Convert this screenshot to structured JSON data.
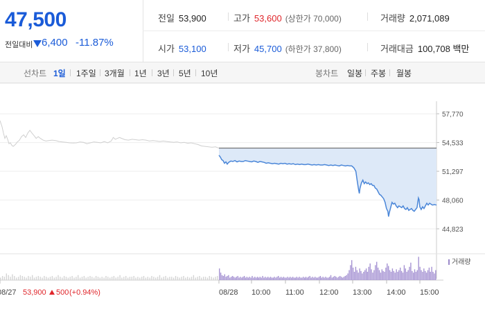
{
  "summary": {
    "price": "47,500",
    "change_label": "전일대비",
    "change_value": "6,400",
    "change_rate": "-11.87%",
    "prev_close_label": "전일",
    "prev_close": "53,900",
    "high_label": "고가",
    "high": "53,600",
    "upper_limit": "(상한가 70,000)",
    "volume_label": "거래량",
    "volume": "2,071,089",
    "open_label": "시가",
    "open": "53,100",
    "low_label": "저가",
    "low": "45,700",
    "lower_limit": "(하한가 37,800)",
    "amount_label": "거래대금",
    "amount": "100,708 백만",
    "down_color": "#1a5bd8",
    "up_color": "#e0262b"
  },
  "tabs": {
    "line_label": "선차트",
    "line_items": [
      "1일",
      "1주일",
      "3개월",
      "1년",
      "3년",
      "5년",
      "10년"
    ],
    "line_selected": 0,
    "candle_label": "봉차트",
    "candle_items": [
      "일봉",
      "주봉",
      "월봉"
    ]
  },
  "chart_data": {
    "type": "line",
    "yticks": [
      "57,770",
      "54,533",
      "51,297",
      "48,060",
      "44,823"
    ],
    "ytick_values": [
      57770,
      54533,
      51297,
      48060,
      44823
    ],
    "ylim": [
      44200,
      58400
    ],
    "reference_price": 53900,
    "xticks": [
      "08/27",
      "08/28",
      "10:00",
      "11:00",
      "12:00",
      "13:00",
      "14:00",
      "15:00"
    ],
    "prev_day": {
      "date": "08/27",
      "close": "53,900",
      "change": "500",
      "change_rate": "(+0.94%)",
      "color": "#cfcfcf",
      "points": [
        [
          0,
          57000
        ],
        [
          3,
          56300
        ],
        [
          5,
          55600
        ],
        [
          7,
          55000
        ],
        [
          9,
          55300
        ],
        [
          11,
          54900
        ],
        [
          13,
          54400
        ],
        [
          15,
          54500
        ],
        [
          17,
          54200
        ],
        [
          19,
          54100
        ],
        [
          22,
          54300
        ],
        [
          25,
          54600
        ],
        [
          28,
          54800
        ],
        [
          31,
          55200
        ],
        [
          34,
          55400
        ],
        [
          37,
          55100
        ],
        [
          40,
          55600
        ],
        [
          43,
          55900
        ],
        [
          46,
          55600
        ],
        [
          49,
          55300
        ],
        [
          52,
          55000
        ],
        [
          55,
          55200
        ],
        [
          58,
          55000
        ],
        [
          62,
          54800
        ],
        [
          66,
          54700
        ],
        [
          70,
          54750
        ],
        [
          75,
          54800
        ],
        [
          80,
          54750
        ],
        [
          85,
          54650
        ],
        [
          90,
          54600
        ],
        [
          95,
          54550
        ],
        [
          100,
          54500
        ],
        [
          105,
          54480
        ],
        [
          110,
          54500
        ],
        [
          115,
          54600
        ],
        [
          120,
          54550
        ],
        [
          125,
          54400
        ],
        [
          130,
          54500
        ],
        [
          135,
          54600
        ],
        [
          140,
          54550
        ],
        [
          145,
          54500
        ],
        [
          150,
          54650
        ],
        [
          155,
          54500
        ],
        [
          160,
          54700
        ],
        [
          163,
          55100
        ],
        [
          166,
          54900
        ],
        [
          169,
          55000
        ],
        [
          172,
          55100
        ],
        [
          175,
          55000
        ],
        [
          180,
          54850
        ],
        [
          185,
          54800
        ],
        [
          190,
          54900
        ],
        [
          195,
          54850
        ],
        [
          200,
          54800
        ],
        [
          205,
          54850
        ],
        [
          210,
          54800
        ],
        [
          215,
          54700
        ],
        [
          220,
          54750
        ],
        [
          225,
          54700
        ],
        [
          230,
          54650
        ],
        [
          235,
          54700
        ],
        [
          240,
          54650
        ],
        [
          245,
          54600
        ],
        [
          250,
          54550
        ],
        [
          255,
          54600
        ],
        [
          260,
          54500
        ],
        [
          265,
          54550
        ],
        [
          270,
          54450
        ],
        [
          275,
          54500
        ],
        [
          280,
          54400
        ],
        [
          285,
          54300
        ],
        [
          290,
          54150
        ],
        [
          295,
          54100
        ],
        [
          300,
          54050
        ],
        [
          305,
          54000
        ],
        [
          310,
          54050
        ],
        [
          315,
          53900
        ]
      ]
    },
    "today": {
      "date": "08/28",
      "color": "#4a86d8",
      "fill": "#dde9f8",
      "points": [
        [
          0,
          53100
        ],
        [
          2,
          52900
        ],
        [
          4,
          52600
        ],
        [
          6,
          52500
        ],
        [
          8,
          52200
        ],
        [
          10,
          52350
        ],
        [
          12,
          52100
        ],
        [
          14,
          52300
        ],
        [
          17,
          52450
        ],
        [
          20,
          52400
        ],
        [
          23,
          52500
        ],
        [
          26,
          52350
        ],
        [
          29,
          52450
        ],
        [
          32,
          52400
        ],
        [
          35,
          52400
        ],
        [
          38,
          52500
        ],
        [
          41,
          52450
        ],
        [
          44,
          52400
        ],
        [
          47,
          52350
        ],
        [
          50,
          52450
        ],
        [
          53,
          52400
        ],
        [
          56,
          52300
        ],
        [
          59,
          52400
        ],
        [
          62,
          52350
        ],
        [
          65,
          52300
        ],
        [
          68,
          52200
        ],
        [
          71,
          52250
        ],
        [
          74,
          52200
        ],
        [
          77,
          52150
        ],
        [
          80,
          52200
        ],
        [
          83,
          52150
        ],
        [
          86,
          52100
        ],
        [
          89,
          52200
        ],
        [
          92,
          52150
        ],
        [
          95,
          52200
        ],
        [
          98,
          52100
        ],
        [
          101,
          52150
        ],
        [
          104,
          52100
        ],
        [
          107,
          52150
        ],
        [
          110,
          52050
        ],
        [
          113,
          52100
        ],
        [
          116,
          52050
        ],
        [
          119,
          52100
        ],
        [
          122,
          52050
        ],
        [
          125,
          52050
        ],
        [
          128,
          52100
        ],
        [
          131,
          52050
        ],
        [
          134,
          52000
        ],
        [
          137,
          52050
        ],
        [
          140,
          52000
        ],
        [
          143,
          52050
        ],
        [
          146,
          52000
        ],
        [
          149,
          52000
        ],
        [
          152,
          52050
        ],
        [
          155,
          52000
        ],
        [
          158,
          51950
        ],
        [
          161,
          52000
        ],
        [
          164,
          51950
        ],
        [
          167,
          52000
        ],
        [
          170,
          51950
        ],
        [
          173,
          51900
        ],
        [
          176,
          52000
        ],
        [
          179,
          51950
        ],
        [
          182,
          51900
        ],
        [
          185,
          51950
        ],
        [
          188,
          51900
        ],
        [
          191,
          51900
        ],
        [
          194,
          51700
        ],
        [
          197,
          51300
        ],
        [
          199,
          50200
        ],
        [
          201,
          49200
        ],
        [
          202,
          48800
        ],
        [
          203,
          49400
        ],
        [
          205,
          50000
        ],
        [
          207,
          50300
        ],
        [
          209,
          49900
        ],
        [
          211,
          50100
        ],
        [
          213,
          49900
        ],
        [
          215,
          50000
        ],
        [
          217,
          49800
        ],
        [
          219,
          49900
        ],
        [
          221,
          49700
        ],
        [
          223,
          49700
        ],
        [
          225,
          49400
        ],
        [
          227,
          49300
        ],
        [
          229,
          49000
        ],
        [
          231,
          48700
        ],
        [
          233,
          48600
        ],
        [
          235,
          48400
        ],
        [
          237,
          48200
        ],
        [
          239,
          47800
        ],
        [
          241,
          47100
        ],
        [
          243,
          46800
        ],
        [
          244,
          46200
        ],
        [
          245,
          46600
        ],
        [
          247,
          47200
        ],
        [
          249,
          47800
        ],
        [
          251,
          47600
        ],
        [
          253,
          47700
        ],
        [
          255,
          47400
        ],
        [
          257,
          47200
        ],
        [
          259,
          47400
        ],
        [
          261,
          47300
        ],
        [
          263,
          47200
        ],
        [
          265,
          47400
        ],
        [
          267,
          47100
        ],
        [
          269,
          47000
        ],
        [
          271,
          47200
        ],
        [
          273,
          46900
        ],
        [
          275,
          47000
        ],
        [
          277,
          47100
        ],
        [
          279,
          46900
        ],
        [
          281,
          46800
        ],
        [
          283,
          47000
        ],
        [
          285,
          47200
        ],
        [
          287,
          48300
        ],
        [
          288,
          48100
        ],
        [
          289,
          47300
        ],
        [
          291,
          47000
        ],
        [
          293,
          47300
        ],
        [
          295,
          47100
        ],
        [
          297,
          47400
        ],
        [
          299,
          47700
        ],
        [
          301,
          47500
        ],
        [
          303,
          47700
        ],
        [
          305,
          47600
        ],
        [
          307,
          47500
        ],
        [
          310,
          47550
        ],
        [
          313,
          47500
        ]
      ]
    },
    "volume_label": "거래량",
    "prev_volume": [
      3,
      5,
      4,
      8,
      6,
      4,
      7,
      5,
      3,
      4,
      6,
      5,
      4,
      3,
      5,
      4,
      6,
      3,
      4,
      5,
      4,
      3,
      5,
      4,
      3,
      4,
      5,
      3,
      4,
      6,
      4,
      3,
      5,
      4,
      3,
      4,
      5,
      3,
      4,
      6,
      3,
      4,
      5,
      3,
      4,
      5,
      4,
      3,
      5,
      4,
      3,
      4,
      3,
      5,
      4,
      3,
      4,
      5,
      3,
      4,
      6,
      3,
      4,
      5,
      3,
      4,
      4,
      5,
      3,
      4,
      3,
      4,
      5,
      3,
      4,
      3,
      5,
      4,
      3,
      4,
      6,
      3,
      4,
      5,
      3,
      4,
      4,
      3,
      5,
      4,
      3,
      4,
      5,
      3,
      4,
      3,
      4,
      6,
      3,
      4,
      5,
      3,
      4,
      4,
      3,
      5,
      4,
      3,
      4,
      5
    ],
    "today_volume": [
      14,
      9,
      6,
      5,
      7,
      4,
      5,
      6,
      3,
      4,
      5,
      4,
      3,
      4,
      5,
      3,
      4,
      3,
      4,
      5,
      3,
      4,
      3,
      4,
      3,
      5,
      3,
      4,
      3,
      4,
      3,
      4,
      3,
      5,
      3,
      4,
      3,
      4,
      3,
      4,
      3,
      3,
      4,
      3,
      4,
      5,
      3,
      4,
      3,
      4,
      3,
      3,
      4,
      3,
      4,
      3,
      4,
      3,
      3,
      4,
      3,
      4,
      3,
      3,
      4,
      3,
      4,
      3,
      4,
      5,
      3,
      4,
      3,
      4,
      3,
      3,
      4,
      5,
      3,
      4,
      3,
      4,
      3,
      3,
      4,
      6,
      3,
      4,
      5,
      4,
      3,
      4,
      5,
      4,
      3,
      4,
      5,
      6,
      8,
      12,
      18,
      24,
      15,
      10,
      16,
      12,
      9,
      14,
      11,
      8,
      10,
      12,
      14,
      10,
      16,
      20,
      13,
      9,
      12,
      18,
      22,
      15,
      12,
      9,
      13,
      11,
      10,
      15,
      20,
      17,
      12,
      10,
      14,
      11,
      9,
      13,
      10,
      12,
      15,
      11,
      9,
      18,
      14,
      10,
      12,
      16,
      21,
      11,
      9,
      13,
      10,
      12,
      28,
      16,
      12,
      10,
      14,
      11,
      9,
      12,
      15,
      10,
      16,
      10,
      8,
      12
    ]
  }
}
